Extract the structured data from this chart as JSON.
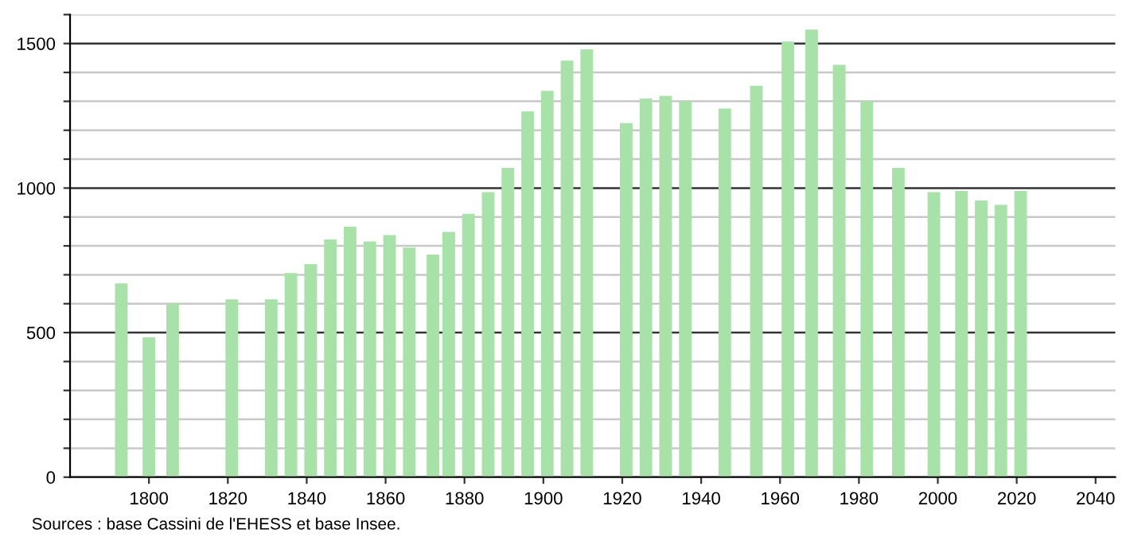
{
  "chart_data": {
    "type": "bar",
    "color": "#a8e2a8",
    "x": [
      1793,
      1800,
      1806,
      1821,
      1831,
      1836,
      1841,
      1846,
      1851,
      1856,
      1861,
      1866,
      1872,
      1876,
      1881,
      1886,
      1891,
      1896,
      1901,
      1906,
      1911,
      1921,
      1926,
      1931,
      1936,
      1946,
      1954,
      1962,
      1968,
      1975,
      1982,
      1990,
      1999,
      2006,
      2011,
      2016,
      2021
    ],
    "values": [
      670,
      484,
      600,
      615,
      615,
      706,
      737,
      822,
      866,
      815,
      837,
      794,
      770,
      848,
      911,
      986,
      1070,
      1265,
      1336,
      1441,
      1480,
      1225,
      1310,
      1319,
      1300,
      1275,
      1354,
      1507,
      1548,
      1426,
      1300,
      1070,
      986,
      990,
      957,
      942,
      990
    ],
    "xlim": [
      1780,
      2045
    ],
    "xticks": [
      1800,
      1820,
      1840,
      1860,
      1880,
      1900,
      1920,
      1940,
      1960,
      1980,
      2000,
      2020,
      2040
    ],
    "ylim": [
      0,
      1600
    ],
    "yticks": [
      0,
      {
        "value": 100,
        "label": null
      },
      {
        "value": 200,
        "label": null
      },
      {
        "value": 300,
        "label": null
      },
      {
        "value": 400,
        "label": null
      },
      500,
      {
        "value": 600,
        "label": null
      },
      {
        "value": 700,
        "label": null
      },
      {
        "value": 800,
        "label": null
      },
      {
        "value": 900,
        "label": null
      },
      1000,
      {
        "value": 1100,
        "label": null
      },
      {
        "value": 1200,
        "label": null
      },
      {
        "value": 1300,
        "label": null
      },
      {
        "value": 1400,
        "label": null
      },
      1500,
      {
        "value": 1600,
        "label": null
      }
    ],
    "grid": "y",
    "annotations": [
      "Sources : base Cassini de l'EHESS et base Insee."
    ]
  }
}
